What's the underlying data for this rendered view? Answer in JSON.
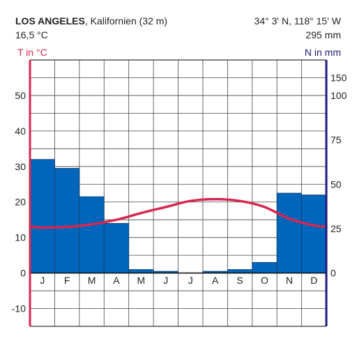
{
  "header": {
    "station": "LOS ANGELES",
    "region": ", Kalifornien (32 m)",
    "mean_temp": "16,5 °C",
    "coords": "34° 3' N, 118° 15' W",
    "annual_precip": "295 mm"
  },
  "colors": {
    "temperature": "#d8264f",
    "precipitation": "#0066bb",
    "precip_axis": "#1f1a7a",
    "grid": "#444444"
  },
  "chart_data": {
    "type": "bar",
    "categories": [
      "J",
      "F",
      "M",
      "A",
      "M",
      "J",
      "J",
      "A",
      "S",
      "O",
      "N",
      "D"
    ],
    "series": [
      {
        "values": [
          64,
          59,
          43,
          28,
          2,
          1,
          0,
          1,
          2,
          6,
          45,
          44
        ]
      },
      {
        "values": [
          12.8,
          13.0,
          13.7,
          15.0,
          16.9,
          18.6,
          20.3,
          20.8,
          20.3,
          18.6,
          15.3,
          13.4
        ]
      }
    ],
    "temp_axis": {
      "label": "T in °C",
      "min": -15,
      "max": 60,
      "ticks": [
        -10,
        0,
        10,
        20,
        30,
        40,
        50
      ]
    },
    "precip_axis": {
      "label": "N in mm",
      "ticks": [
        0,
        25,
        50,
        75,
        100,
        150
      ]
    }
  }
}
